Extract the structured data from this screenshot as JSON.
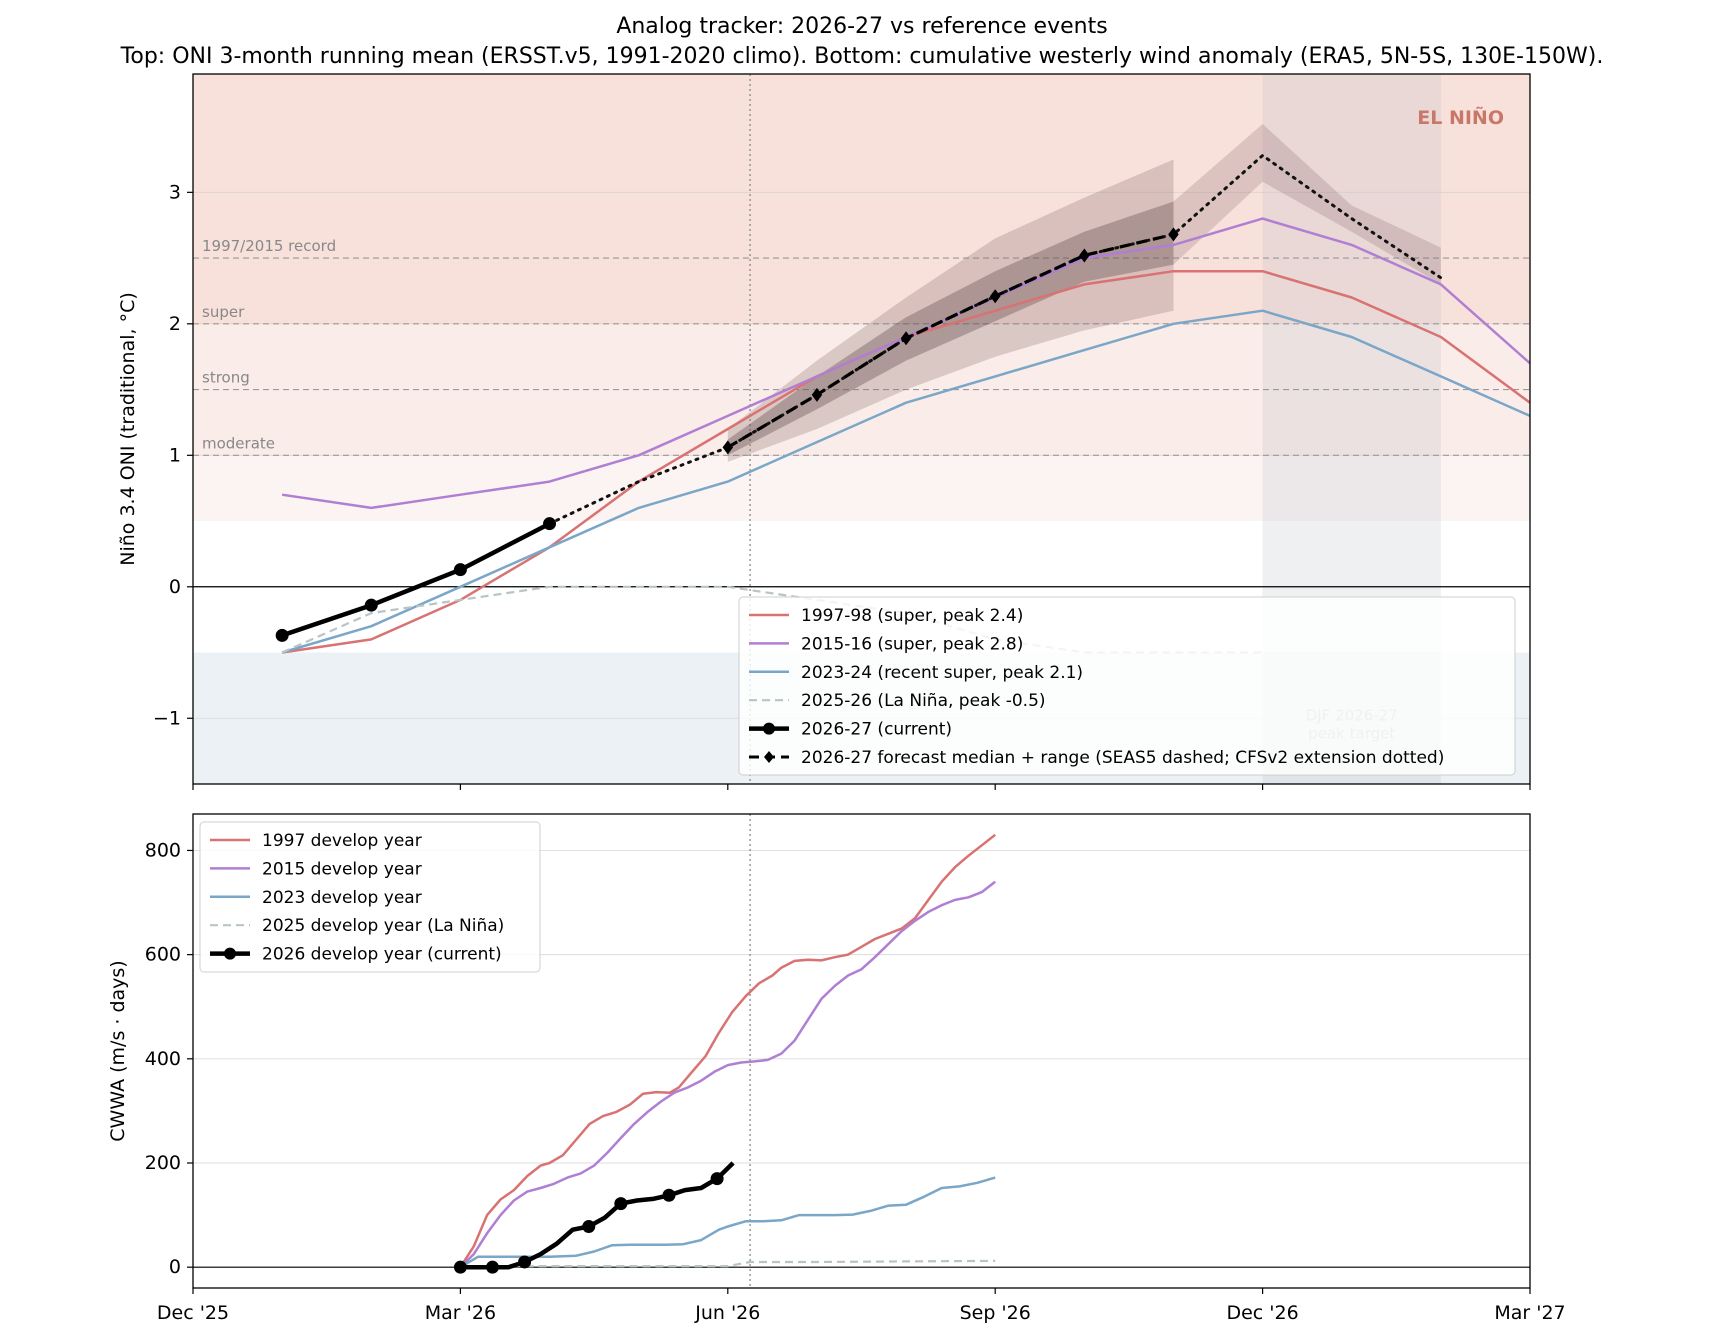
{
  "figure": {
    "title_line1": "Analog tracker: 2026-27 vs reference events",
    "title_line2": "Top: ONI 3-month running mean (ERSST.v5, 1991-2020 climo). Bottom: cumulative westerly wind anomaly (ERA5, 5N-5S, 130E-150W)."
  },
  "colors": {
    "red": "#d97272",
    "purple": "#b07fd3",
    "blue": "#7aa6c8",
    "gray_dashed": "#b9c4c7",
    "current": "#000000",
    "warm_band": "#f2c9bd",
    "cool_band": "#d8e3ec",
    "el_nino_label": "#c87868"
  },
  "x_axis": {
    "ticks": [
      {
        "m": 0,
        "label": "Dec '25"
      },
      {
        "m": 3,
        "label": "Mar '26"
      },
      {
        "m": 6,
        "label": "Jun '26"
      },
      {
        "m": 9,
        "label": "Sep '26"
      },
      {
        "m": 12,
        "label": "Dec '26"
      },
      {
        "m": 15,
        "label": "Mar '27"
      }
    ],
    "today_marker": 6.25
  },
  "chart_data": [
    {
      "type": "line",
      "panel": "top",
      "title": "",
      "ylabel": "Niño 3.4 ONI (traditional, °C)",
      "ylim": [
        -1.5,
        3.9
      ],
      "xlim_months_from_dec25": [
        0,
        15
      ],
      "yticks": [
        -1,
        0,
        1,
        2,
        3
      ],
      "corner_label": "EL NIÑO",
      "threshold_lines": [
        {
          "y": 2.5,
          "label": "1997/2015 record"
        },
        {
          "y": 2.0,
          "label": "super"
        },
        {
          "y": 1.5,
          "label": "strong"
        },
        {
          "y": 1.0,
          "label": "moderate"
        }
      ],
      "peak_window": {
        "from": 12,
        "to": 14,
        "label_line1": "DJF 2026-27",
        "label_line2": "peak target"
      },
      "series": [
        {
          "name": "1997-98 (super, peak 2.4)",
          "color": "red",
          "style": "solid",
          "x": [
            1,
            2,
            3,
            4,
            5,
            6,
            7,
            8,
            9,
            10,
            11,
            12,
            13,
            14,
            15
          ],
          "y": [
            -0.5,
            -0.4,
            -0.1,
            0.3,
            0.8,
            1.2,
            1.6,
            1.9,
            2.1,
            2.3,
            2.4,
            2.4,
            2.2,
            1.9,
            1.4
          ]
        },
        {
          "name": "2015-16 (super, peak 2.8)",
          "color": "purple",
          "style": "solid",
          "x": [
            1,
            2,
            3,
            4,
            5,
            6,
            7,
            8,
            9,
            10,
            11,
            12,
            13,
            14,
            15
          ],
          "y": [
            0.7,
            0.6,
            0.7,
            0.8,
            1.0,
            1.3,
            1.6,
            1.9,
            2.2,
            2.5,
            2.6,
            2.8,
            2.6,
            2.3,
            1.7
          ]
        },
        {
          "name": "2023-24 (recent super, peak 2.1)",
          "color": "blue",
          "style": "solid",
          "x": [
            1,
            2,
            3,
            4,
            5,
            6,
            7,
            8,
            9,
            10,
            11,
            12,
            13,
            14,
            15
          ],
          "y": [
            -0.5,
            -0.3,
            0.0,
            0.3,
            0.6,
            0.8,
            1.1,
            1.4,
            1.6,
            1.8,
            2.0,
            2.1,
            1.9,
            1.6,
            1.3
          ]
        },
        {
          "name": "2025-26 (La Niña, peak -0.5)",
          "color": "gray_dashed",
          "style": "dashed",
          "x": [
            1,
            2,
            3,
            4,
            5,
            6,
            7,
            8,
            9,
            10,
            11,
            12
          ],
          "y": [
            -0.5,
            -0.2,
            -0.1,
            0.0,
            0.0,
            0.0,
            -0.1,
            -0.2,
            -0.4,
            -0.5,
            -0.5,
            -0.5
          ]
        },
        {
          "name": "2026-27 (current)",
          "color": "current",
          "style": "solid-markers",
          "x": [
            1,
            2,
            3,
            4
          ],
          "y": [
            -0.37,
            -0.14,
            0.13,
            0.48
          ]
        },
        {
          "name": "2026-27 forecast median + range (SEAS5 dashed; CFSv2 extension dotted)",
          "color": "current",
          "style": "dashed-diamonds",
          "x": [
            6,
            7,
            8,
            9,
            10,
            11
          ],
          "y": [
            1.06,
            1.46,
            1.89,
            2.21,
            2.52,
            2.68
          ]
        }
      ],
      "cfsv2_extension": {
        "x": [
          4,
          5,
          6,
          7,
          8,
          9,
          10,
          11,
          12,
          13,
          14
        ],
        "y": [
          0.48,
          0.8,
          1.06,
          1.46,
          1.89,
          2.21,
          2.52,
          2.68,
          3.28,
          2.8,
          2.35
        ]
      },
      "forecast_outer_range": {
        "x": [
          6,
          7,
          8,
          9,
          10,
          11
        ],
        "low": [
          0.95,
          1.2,
          1.5,
          1.75,
          1.95,
          2.1
        ],
        "high": [
          1.2,
          1.72,
          2.2,
          2.65,
          2.96,
          3.25
        ]
      },
      "forecast_inner_range": {
        "x": [
          6,
          7,
          8,
          9,
          10,
          11
        ],
        "low": [
          1.0,
          1.35,
          1.72,
          2.02,
          2.32,
          2.45
        ],
        "high": [
          1.12,
          1.6,
          2.05,
          2.4,
          2.7,
          2.93
        ]
      },
      "cfsv2_range": {
        "x": [
          11,
          12,
          13,
          14
        ],
        "low": [
          2.45,
          3.08,
          2.7,
          2.3
        ],
        "high": [
          2.93,
          3.52,
          2.9,
          2.58
        ]
      }
    },
    {
      "type": "line",
      "panel": "bottom",
      "title": "",
      "ylabel": "CWWA (m/s · days)",
      "ylim": [
        -40,
        870
      ],
      "xlim_months_from_dec25": [
        0,
        15
      ],
      "yticks": [
        0,
        200,
        400,
        600,
        800
      ],
      "series": [
        {
          "name": "1997 develop year",
          "color": "red",
          "style": "solid",
          "x": [
            3.0,
            3.15,
            3.3,
            3.45,
            3.6,
            3.75,
            3.9,
            4.0,
            4.15,
            4.3,
            4.45,
            4.6,
            4.75,
            4.9,
            5.05,
            5.2,
            5.35,
            5.45,
            5.6,
            5.75,
            5.9,
            6.05,
            6.2,
            6.35,
            6.5,
            6.6,
            6.75,
            6.9,
            7.05,
            7.2,
            7.35,
            7.5,
            7.65,
            7.8,
            7.95,
            8.1,
            8.25,
            8.4,
            8.55,
            8.7,
            8.85,
            9.0
          ],
          "y": [
            0,
            40,
            100,
            130,
            148,
            175,
            195,
            200,
            215,
            245,
            275,
            290,
            298,
            312,
            333,
            336,
            335,
            345,
            375,
            405,
            450,
            490,
            520,
            545,
            560,
            575,
            588,
            590,
            589,
            595,
            600,
            615,
            630,
            640,
            650,
            670,
            705,
            740,
            768,
            790,
            810,
            830
          ]
        },
        {
          "name": "2015 develop year",
          "color": "purple",
          "style": "solid",
          "x": [
            3.0,
            3.15,
            3.3,
            3.45,
            3.6,
            3.75,
            3.9,
            4.05,
            4.2,
            4.35,
            4.5,
            4.65,
            4.8,
            4.95,
            5.1,
            5.25,
            5.4,
            5.55,
            5.7,
            5.85,
            6.0,
            6.15,
            6.3,
            6.45,
            6.6,
            6.75,
            6.9,
            7.05,
            7.2,
            7.35,
            7.5,
            7.65,
            7.8,
            7.95,
            8.1,
            8.25,
            8.4,
            8.55,
            8.7,
            8.85,
            9.0
          ],
          "y": [
            0,
            25,
            65,
            100,
            128,
            145,
            152,
            160,
            172,
            180,
            195,
            220,
            248,
            275,
            298,
            318,
            335,
            345,
            358,
            375,
            388,
            393,
            395,
            398,
            410,
            435,
            475,
            515,
            540,
            560,
            572,
            595,
            620,
            645,
            665,
            682,
            695,
            705,
            710,
            720,
            740
          ]
        },
        {
          "name": "2023 develop year",
          "color": "blue",
          "style": "solid",
          "x": [
            3.0,
            3.2,
            3.5,
            3.8,
            4.0,
            4.3,
            4.5,
            4.7,
            4.9,
            5.1,
            5.3,
            5.5,
            5.7,
            5.9,
            6.0,
            6.2,
            6.4,
            6.6,
            6.8,
            7.0,
            7.2,
            7.4,
            7.6,
            7.8,
            8.0,
            8.2,
            8.4,
            8.6,
            8.8,
            9.0
          ],
          "y": [
            0,
            20,
            20,
            20,
            20,
            22,
            30,
            42,
            43,
            43,
            43,
            44,
            52,
            72,
            78,
            88,
            88,
            90,
            100,
            100,
            100,
            101,
            108,
            118,
            120,
            135,
            152,
            155,
            162,
            172
          ]
        },
        {
          "name": "2025 develop year (La Niña)",
          "color": "gray_dashed",
          "style": "dashed",
          "x": [
            3.0,
            4.0,
            5.0,
            6.0,
            6.25,
            7.0,
            8.0,
            9.0
          ],
          "y": [
            2,
            2,
            2,
            2,
            10,
            10,
            11,
            12
          ]
        },
        {
          "name": "2026 develop year (current)",
          "color": "current",
          "style": "solid-markers",
          "x": [
            3.0,
            3.18,
            3.36,
            3.54,
            3.72,
            3.9,
            4.08,
            4.26,
            4.44,
            4.62,
            4.8,
            4.98,
            5.16,
            5.34,
            5.52,
            5.7,
            5.88,
            6.06
          ],
          "y": [
            0,
            0,
            0,
            0,
            10,
            25,
            45,
            72,
            78,
            95,
            122,
            128,
            131,
            138,
            148,
            152,
            170,
            200
          ],
          "marker_indices": [
            0,
            2,
            4,
            8,
            10,
            13,
            16
          ]
        }
      ]
    }
  ]
}
